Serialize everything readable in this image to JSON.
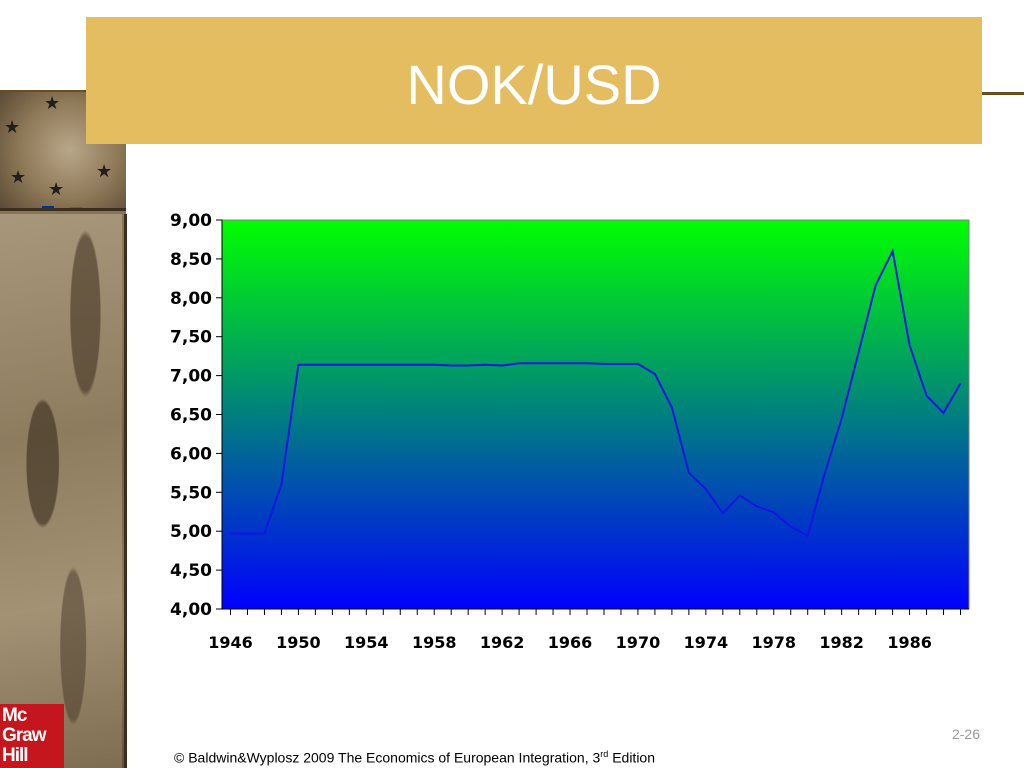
{
  "slide": {
    "title": "NOK/USD",
    "slide_number": "2-26",
    "footer_main": "© Baldwin&Wyplosz 2009 The Economics of European Integration, 3",
    "footer_sup": "rd",
    "footer_end": " Edition",
    "logo": [
      "Mc",
      "Graw",
      "Hill"
    ]
  },
  "colors": {
    "title_bar": "#e3bd5f",
    "plot_top": "#00ff00",
    "plot_bottom": "#0000ff",
    "line": "#1515e0"
  },
  "chart_data": {
    "type": "line",
    "title": "",
    "xlabel": "",
    "ylabel": "",
    "grid": false,
    "legend": "none",
    "xlim": [
      1945.5,
      1989.5
    ],
    "ylim": [
      4.0,
      9.0
    ],
    "y_ticks": [
      "4,00",
      "4,50",
      "5,00",
      "5,50",
      "6,00",
      "6,50",
      "7,00",
      "7,50",
      "8,00",
      "8,50",
      "9,00"
    ],
    "x_tick_labels": [
      "1946",
      "1950",
      "1954",
      "1958",
      "1962",
      "1966",
      "1970",
      "1974",
      "1978",
      "1982",
      "1986"
    ],
    "x": [
      1946,
      1947,
      1948,
      1949,
      1950,
      1951,
      1952,
      1953,
      1954,
      1955,
      1956,
      1957,
      1958,
      1959,
      1960,
      1961,
      1962,
      1963,
      1964,
      1965,
      1966,
      1967,
      1968,
      1969,
      1970,
      1971,
      1972,
      1973,
      1974,
      1975,
      1976,
      1977,
      1978,
      1979,
      1980,
      1981,
      1982,
      1983,
      1984,
      1985,
      1986,
      1987,
      1988,
      1989
    ],
    "series": [
      {
        "values": [
          4.97,
          4.97,
          4.97,
          5.6,
          7.14,
          7.14,
          7.14,
          7.14,
          7.14,
          7.14,
          7.14,
          7.14,
          7.14,
          7.13,
          7.13,
          7.14,
          7.13,
          7.16,
          7.16,
          7.16,
          7.16,
          7.16,
          7.15,
          7.15,
          7.15,
          7.02,
          6.59,
          5.75,
          5.54,
          5.23,
          5.46,
          5.32,
          5.24,
          5.06,
          4.94,
          5.74,
          6.45,
          7.3,
          8.16,
          8.6,
          7.39,
          6.74,
          6.52,
          6.9
        ]
      }
    ]
  }
}
